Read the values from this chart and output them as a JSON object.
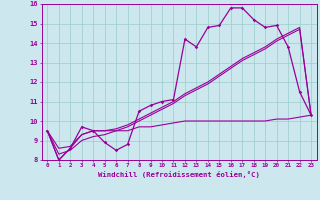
{
  "xlabel": "Windchill (Refroidissement éolien,°C)",
  "bg_color": "#cce8ee",
  "line_color": "#990099",
  "grid_color": "#99cccc",
  "hours": [
    0,
    1,
    2,
    3,
    4,
    5,
    6,
    7,
    8,
    9,
    10,
    11,
    12,
    13,
    14,
    15,
    16,
    17,
    18,
    19,
    20,
    21,
    22,
    23
  ],
  "temp": [
    9.5,
    8.0,
    8.6,
    9.7,
    9.5,
    8.9,
    8.5,
    8.8,
    10.5,
    10.8,
    11.0,
    11.1,
    14.2,
    13.8,
    14.8,
    14.9,
    15.8,
    15.8,
    15.2,
    14.8,
    14.9,
    13.8,
    11.5,
    10.3
  ],
  "line1": [
    9.5,
    8.6,
    8.7,
    9.3,
    9.5,
    9.5,
    9.6,
    9.8,
    10.1,
    10.4,
    10.7,
    11.0,
    11.4,
    11.7,
    12.0,
    12.4,
    12.8,
    13.2,
    13.5,
    13.8,
    14.2,
    14.5,
    14.8,
    10.3
  ],
  "line2": [
    9.5,
    8.3,
    8.5,
    9.0,
    9.2,
    9.3,
    9.5,
    9.7,
    10.0,
    10.3,
    10.6,
    10.9,
    11.3,
    11.6,
    11.9,
    12.3,
    12.7,
    13.1,
    13.4,
    13.7,
    14.1,
    14.4,
    14.7,
    10.3
  ],
  "flat": [
    9.5,
    8.0,
    8.6,
    9.3,
    9.5,
    9.5,
    9.5,
    9.5,
    9.7,
    9.7,
    9.8,
    9.9,
    10.0,
    10.0,
    10.0,
    10.0,
    10.0,
    10.0,
    10.0,
    10.0,
    10.1,
    10.1,
    10.2,
    10.3
  ],
  "ylim": [
    8,
    16
  ],
  "xlim_min": -0.5,
  "xlim_max": 23.5,
  "yticks": [
    8,
    9,
    10,
    11,
    12,
    13,
    14,
    15,
    16
  ],
  "xticks": [
    0,
    1,
    2,
    3,
    4,
    5,
    6,
    7,
    8,
    9,
    10,
    11,
    12,
    13,
    14,
    15,
    16,
    17,
    18,
    19,
    20,
    21,
    22,
    23
  ]
}
